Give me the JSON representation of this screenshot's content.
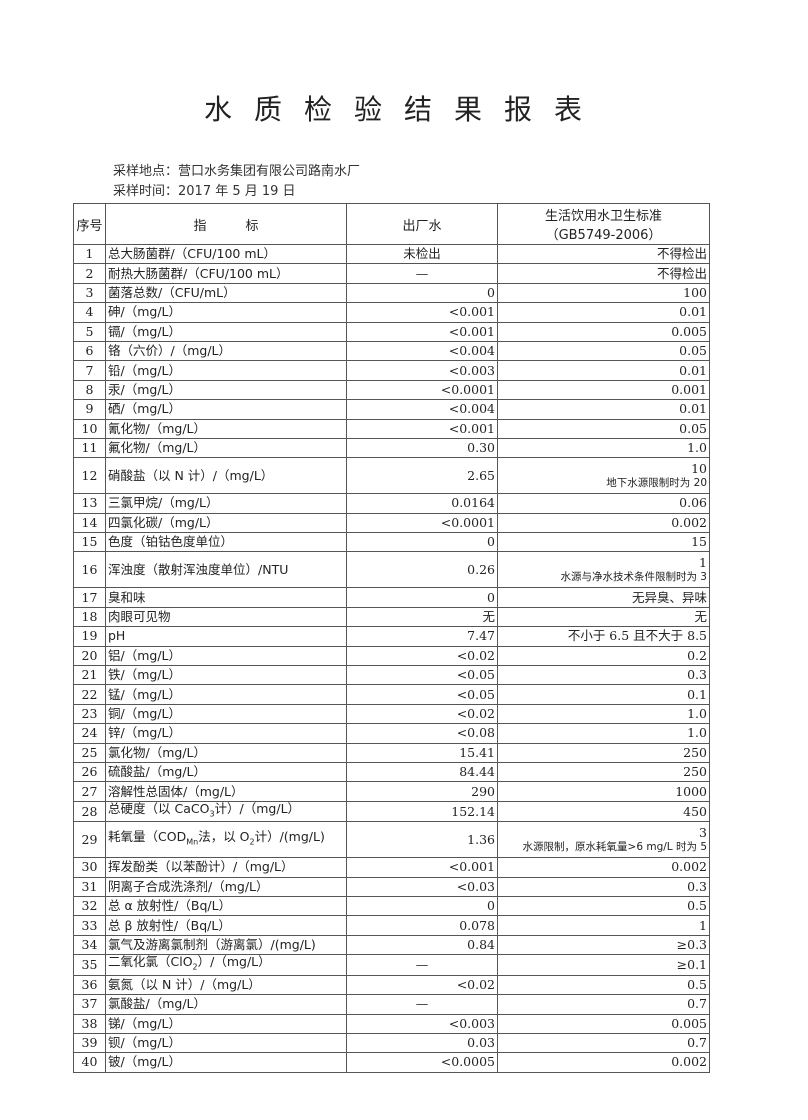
{
  "title": "水质检验结果报表",
  "sampling_location": "采样地点：营口水务集团有限公司路南水厂",
  "sampling_time": "采样时间：2017 年 5 月 19 日",
  "headers": {
    "no": "序号",
    "indicator": "指　　　标",
    "outlet": "出厂水",
    "standard_line1": "生活饮用水卫生标准",
    "standard_line2": "（GB5749-2006）"
  },
  "rows": [
    {
      "no": "1",
      "name": [
        {
          "t": "总大肠菌群/（CFU/100 mL）"
        }
      ],
      "value": "未检出",
      "value_center": true,
      "std": "不得检出"
    },
    {
      "no": "2",
      "name": [
        {
          "t": "耐热大肠菌群/（CFU/100 mL）"
        }
      ],
      "value": "—",
      "value_center": true,
      "std": "不得检出"
    },
    {
      "no": "3",
      "name": [
        {
          "t": "菌落总数/（CFU/mL）"
        }
      ],
      "value": "0",
      "std": "100"
    },
    {
      "no": "4",
      "name": [
        {
          "t": "砷/（mg/L）"
        }
      ],
      "value": "<0.001",
      "std": "0.01"
    },
    {
      "no": "5",
      "name": [
        {
          "t": "镉/（mg/L）"
        }
      ],
      "value": "<0.001",
      "std": "0.005"
    },
    {
      "no": "6",
      "name": [
        {
          "t": "铬（六价）/（mg/L）"
        }
      ],
      "value": "<0.004",
      "std": "0.05"
    },
    {
      "no": "7",
      "name": [
        {
          "t": "铅/（mg/L）"
        }
      ],
      "value": "<0.003",
      "std": "0.01"
    },
    {
      "no": "8",
      "name": [
        {
          "t": "汞/（mg/L）"
        }
      ],
      "value": "<0.0001",
      "std": "0.001"
    },
    {
      "no": "9",
      "name": [
        {
          "t": "硒/（mg/L）"
        }
      ],
      "value": "<0.004",
      "std": "0.01"
    },
    {
      "no": "10",
      "name": [
        {
          "t": "氰化物/（mg/L）"
        }
      ],
      "value": "<0.001",
      "std": "0.05"
    },
    {
      "no": "11",
      "name": [
        {
          "t": "氟化物/（mg/L）"
        }
      ],
      "value": "0.30",
      "std": "1.0"
    },
    {
      "no": "12",
      "name": [
        {
          "t": "硝酸盐（以 N 计）/（mg/L）"
        }
      ],
      "value": "2.65",
      "std": "10",
      "std_note": "地下水源限制时为 20"
    },
    {
      "no": "13",
      "name": [
        {
          "t": "三氯甲烷/（mg/L）"
        }
      ],
      "value": "0.0164",
      "std": "0.06"
    },
    {
      "no": "14",
      "name": [
        {
          "t": "四氯化碳/（mg/L）"
        }
      ],
      "value": "<0.0001",
      "std": "0.002"
    },
    {
      "no": "15",
      "name": [
        {
          "t": "色度（铂钴色度单位）"
        }
      ],
      "value": "0",
      "std": "15"
    },
    {
      "no": "16",
      "name": [
        {
          "t": "浑浊度（散射浑浊度单位）/NTU"
        }
      ],
      "value": "0.26",
      "std": "1",
      "std_note": "水源与净水技术条件限制时为 3"
    },
    {
      "no": "17",
      "name": [
        {
          "t": "臭和味"
        }
      ],
      "value": "0",
      "std": "无异臭、异味"
    },
    {
      "no": "18",
      "name": [
        {
          "t": "肉眼可见物"
        }
      ],
      "value": "无",
      "std": "无"
    },
    {
      "no": "19",
      "name": [
        {
          "t": "pH"
        }
      ],
      "value": "7.47",
      "std": "不小于 6.5 且不大于 8.5"
    },
    {
      "no": "20",
      "name": [
        {
          "t": "铝/（mg/L）"
        }
      ],
      "value": "<0.02",
      "std": "0.2"
    },
    {
      "no": "21",
      "name": [
        {
          "t": "铁/（mg/L）"
        }
      ],
      "value": "<0.05",
      "std": "0.3"
    },
    {
      "no": "22",
      "name": [
        {
          "t": "锰/（mg/L）"
        }
      ],
      "value": "<0.05",
      "std": "0.1"
    },
    {
      "no": "23",
      "name": [
        {
          "t": "铜/（mg/L）"
        }
      ],
      "value": "<0.02",
      "std": "1.0"
    },
    {
      "no": "24",
      "name": [
        {
          "t": "锌/（mg/L）"
        }
      ],
      "value": "<0.08",
      "std": "1.0"
    },
    {
      "no": "25",
      "name": [
        {
          "t": "氯化物/（mg/L）"
        }
      ],
      "value": "15.41",
      "std": "250"
    },
    {
      "no": "26",
      "name": [
        {
          "t": "硫酸盐/（mg/L）"
        }
      ],
      "value": "84.44",
      "std": "250"
    },
    {
      "no": "27",
      "name": [
        {
          "t": "溶解性总固体/（mg/L）"
        }
      ],
      "value": "290",
      "std": "1000"
    },
    {
      "no": "28",
      "name": [
        {
          "t": "总硬度（以 CaCO"
        },
        {
          "sub": "3"
        },
        {
          "t": "计）/（mg/L）"
        }
      ],
      "value": "152.14",
      "std": "450"
    },
    {
      "no": "29",
      "name": [
        {
          "t": "耗氧量（COD"
        },
        {
          "sub": "Mn"
        },
        {
          "t": "法，以 O"
        },
        {
          "sub": "2"
        },
        {
          "t": "计）/(mg/L)"
        }
      ],
      "value": "1.36",
      "std": "3",
      "std_note": "水源限制，原水耗氧量>6 mg/L 时为 5"
    },
    {
      "no": "30",
      "name": [
        {
          "t": "挥发酚类（以苯酚计）/（mg/L）"
        }
      ],
      "value": "<0.001",
      "std": "0.002"
    },
    {
      "no": "31",
      "name": [
        {
          "t": "阴离子合成洗涤剂/（mg/L）"
        }
      ],
      "value": "<0.03",
      "std": "0.3"
    },
    {
      "no": "32",
      "name": [
        {
          "t": "总 α 放射性/（Bq/L）"
        }
      ],
      "value": "0",
      "std": "0.5"
    },
    {
      "no": "33",
      "name": [
        {
          "t": "总 β 放射性/（Bq/L）"
        }
      ],
      "value": "0.078",
      "std": "1"
    },
    {
      "no": "34",
      "name": [
        {
          "t": "氯气及游离氯制剂（游离氯）/(mg/L)"
        }
      ],
      "value": "0.84",
      "std": "≥0.3"
    },
    {
      "no": "35",
      "name": [
        {
          "t": "二氧化氯（ClO"
        },
        {
          "sub": "2"
        },
        {
          "t": "）/（mg/L）"
        }
      ],
      "value": "—",
      "value_center": true,
      "std": "≥0.1"
    },
    {
      "no": "36",
      "name": [
        {
          "t": "氨氮（以 N 计）/（mg/L）"
        }
      ],
      "value": "<0.02",
      "std": "0.5"
    },
    {
      "no": "37",
      "name": [
        {
          "t": "氯酸盐/（mg/L）"
        }
      ],
      "value": "—",
      "value_center": true,
      "std": "0.7"
    },
    {
      "no": "38",
      "name": [
        {
          "t": "锑/（mg/L）"
        }
      ],
      "value": "<0.003",
      "std": "0.005"
    },
    {
      "no": "39",
      "name": [
        {
          "t": "钡/（mg/L）"
        }
      ],
      "value": "0.03",
      "std": "0.7"
    },
    {
      "no": "40",
      "name": [
        {
          "t": "铍/（mg/L）"
        }
      ],
      "value": "<0.0005",
      "std": "0.002"
    }
  ]
}
